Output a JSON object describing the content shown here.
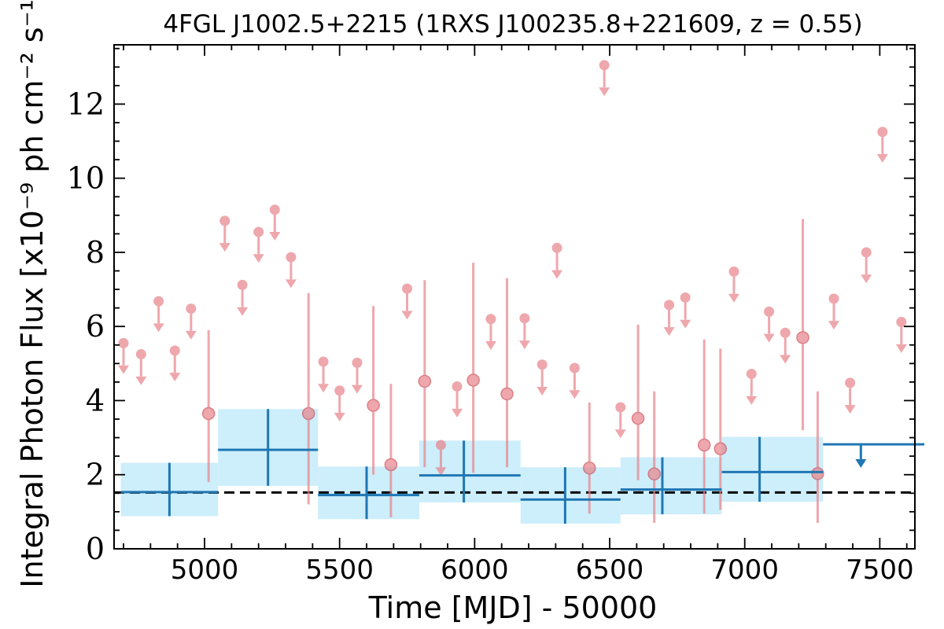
{
  "chart_data": {
    "type": "scatter",
    "title": "4FGL J1002.5+2215 (1RXS J100235.8+221609, z = 0.55)",
    "xlabel": "Time [MJD] - 50000",
    "ylabel": "Integral Photon Flux [x10⁻⁹ ph cm⁻² s⁻¹]",
    "xlim": [
      4665,
      7630
    ],
    "ylim": [
      0,
      13.6
    ],
    "x_ticks": [
      5000,
      5500,
      6000,
      6500,
      7000,
      7500
    ],
    "y_ticks": [
      0,
      2,
      4,
      6,
      8,
      10,
      12
    ],
    "grid": false,
    "average_flux_line": 1.52,
    "colors": {
      "short_bins": "#e8838a",
      "long_bins": "#1f77b4",
      "band": "#cdeefb",
      "average_line": "#000000"
    },
    "short_bin_upper_limits": [
      {
        "x": 4700,
        "y": 5.55
      },
      {
        "x": 4765,
        "y": 5.25
      },
      {
        "x": 4830,
        "y": 6.68
      },
      {
        "x": 4890,
        "y": 5.35
      },
      {
        "x": 4950,
        "y": 6.48
      },
      {
        "x": 5075,
        "y": 8.85
      },
      {
        "x": 5140,
        "y": 7.12
      },
      {
        "x": 5200,
        "y": 8.55
      },
      {
        "x": 5260,
        "y": 9.15
      },
      {
        "x": 5320,
        "y": 7.87
      },
      {
        "x": 5440,
        "y": 5.05
      },
      {
        "x": 5500,
        "y": 4.27
      },
      {
        "x": 5565,
        "y": 5.02
      },
      {
        "x": 5750,
        "y": 7.02
      },
      {
        "x": 5875,
        "y": 2.8
      },
      {
        "x": 5935,
        "y": 4.38
      },
      {
        "x": 6060,
        "y": 6.2
      },
      {
        "x": 6185,
        "y": 6.22
      },
      {
        "x": 6250,
        "y": 4.97
      },
      {
        "x": 6305,
        "y": 8.12
      },
      {
        "x": 6370,
        "y": 4.88
      },
      {
        "x": 6480,
        "y": 13.05
      },
      {
        "x": 6540,
        "y": 3.82
      },
      {
        "x": 6720,
        "y": 6.58
      },
      {
        "x": 6780,
        "y": 6.78
      },
      {
        "x": 6960,
        "y": 7.48
      },
      {
        "x": 7025,
        "y": 4.72
      },
      {
        "x": 7090,
        "y": 6.4
      },
      {
        "x": 7150,
        "y": 5.83
      },
      {
        "x": 7330,
        "y": 6.75
      },
      {
        "x": 7390,
        "y": 4.48
      },
      {
        "x": 7510,
        "y": 11.25
      },
      {
        "x": 7450,
        "y": 8.0
      },
      {
        "x": 7580,
        "y": 6.12
      }
    ],
    "short_bin_detections": [
      {
        "x": 5015,
        "y": 3.65,
        "err_lo": 1.8,
        "err_hi": 5.9
      },
      {
        "x": 5385,
        "y": 3.65,
        "err_lo": 1.2,
        "err_hi": 6.9
      },
      {
        "x": 5625,
        "y": 3.87,
        "err_lo": 2.0,
        "err_hi": 6.55
      },
      {
        "x": 5690,
        "y": 2.27,
        "err_lo": 0.85,
        "err_hi": 4.45
      },
      {
        "x": 5815,
        "y": 4.52,
        "err_lo": 2.2,
        "err_hi": 7.25
      },
      {
        "x": 5995,
        "y": 4.55,
        "err_lo": 2.05,
        "err_hi": 7.72
      },
      {
        "x": 6120,
        "y": 4.18,
        "err_lo": 2.2,
        "err_hi": 7.3
      },
      {
        "x": 6425,
        "y": 2.18,
        "err_lo": 0.95,
        "err_hi": 3.95
      },
      {
        "x": 6605,
        "y": 3.52,
        "err_lo": 1.85,
        "err_hi": 6.05
      },
      {
        "x": 6665,
        "y": 2.02,
        "err_lo": 0.7,
        "err_hi": 4.25
      },
      {
        "x": 6850,
        "y": 2.8,
        "err_lo": 0.95,
        "err_hi": 5.65
      },
      {
        "x": 6910,
        "y": 2.7,
        "err_lo": 1.05,
        "err_hi": 5.4
      },
      {
        "x": 7215,
        "y": 5.7,
        "err_lo": 3.2,
        "err_hi": 8.9
      },
      {
        "x": 7270,
        "y": 2.03,
        "err_lo": 0.7,
        "err_hi": 4.25
      }
    ],
    "long_bins": [
      {
        "x0": 4690,
        "x1": 5050,
        "x": 4870,
        "y": 1.53,
        "err_lo": 0.88,
        "err_hi": 2.32
      },
      {
        "x0": 5050,
        "x1": 5420,
        "x": 5235,
        "y": 2.67,
        "err_lo": 1.7,
        "err_hi": 3.77
      },
      {
        "x0": 5420,
        "x1": 5795,
        "x": 5600,
        "y": 1.45,
        "err_lo": 0.8,
        "err_hi": 2.22
      },
      {
        "x0": 5795,
        "x1": 6170,
        "x": 5960,
        "y": 1.98,
        "err_lo": 1.25,
        "err_hi": 2.92
      },
      {
        "x0": 6170,
        "x1": 6540,
        "x": 6335,
        "y": 1.33,
        "err_lo": 0.68,
        "err_hi": 2.2
      },
      {
        "x0": 6540,
        "x1": 6915,
        "x": 6695,
        "y": 1.6,
        "err_lo": 0.93,
        "err_hi": 2.47
      },
      {
        "x0": 6915,
        "x1": 7290,
        "x": 7055,
        "y": 2.07,
        "err_lo": 1.27,
        "err_hi": 3.02
      }
    ],
    "long_bin_upper_limits": [
      {
        "x0": 7290,
        "x1": 7665,
        "x": 7430,
        "y": 2.82
      }
    ]
  }
}
